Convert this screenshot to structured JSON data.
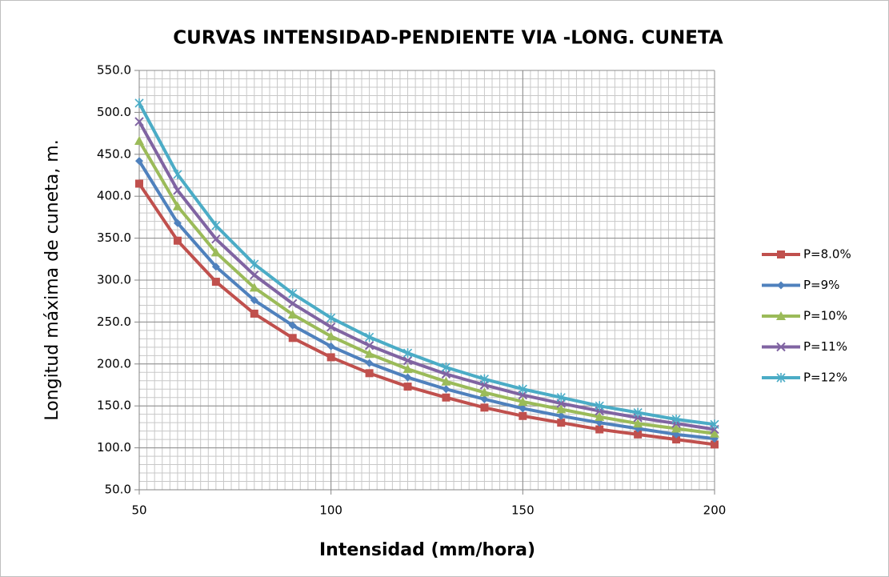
{
  "chart_data": {
    "type": "line",
    "title": "CURVAS  INTENSIDAD-PENDIENTE VIA -LONG. CUNETA",
    "x_label": "Intensidad (mm/hora)",
    "y_label": "Longitud máxima de cuneta, m.",
    "x": [
      50,
      60,
      70,
      80,
      90,
      100,
      110,
      120,
      130,
      140,
      150,
      160,
      170,
      180,
      190,
      200
    ],
    "series": [
      {
        "name": "P=8.0%",
        "color": "#c0504d",
        "marker": "square",
        "values": [
          415,
          347,
          298,
          260,
          231,
          208,
          189,
          173,
          160,
          148,
          138,
          130,
          122,
          116,
          110,
          104
        ]
      },
      {
        "name": "P=9%",
        "color": "#4f81bd",
        "marker": "diamond",
        "values": [
          442,
          368,
          316,
          276,
          246,
          221,
          201,
          184,
          170,
          158,
          147,
          138,
          130,
          123,
          116,
          111
        ]
      },
      {
        "name": "P=10%",
        "color": "#9bbb59",
        "marker": "triangle",
        "values": [
          466,
          388,
          333,
          291,
          259,
          233,
          212,
          194,
          179,
          166,
          155,
          146,
          137,
          129,
          123,
          117
        ]
      },
      {
        "name": "P=11%",
        "color": "#8064a2",
        "marker": "x",
        "values": [
          489,
          407,
          349,
          306,
          272,
          244,
          222,
          204,
          188,
          175,
          163,
          153,
          144,
          136,
          129,
          122
        ]
      },
      {
        "name": "P=12%",
        "color": "#4bacc6",
        "marker": "star",
        "values": [
          511,
          426,
          365,
          319,
          284,
          255,
          232,
          213,
          196,
          182,
          170,
          160,
          150,
          142,
          134,
          128
        ]
      }
    ],
    "xlim": [
      50,
      200
    ],
    "xticks": [
      50,
      100,
      150,
      200
    ],
    "ylim": [
      50,
      550
    ],
    "yticks": [
      {
        "value": 50,
        "label": "50.0"
      },
      {
        "value": 100,
        "label": "100.0"
      },
      {
        "value": 150,
        "label": "150.0"
      },
      {
        "value": 200,
        "label": "200.0"
      },
      {
        "value": 250,
        "label": "250.0"
      },
      {
        "value": 300,
        "label": "300.0"
      },
      {
        "value": 350,
        "label": "350.0"
      },
      {
        "value": 400,
        "label": "400.0"
      },
      {
        "value": 450,
        "label": "450.0"
      },
      {
        "value": 500,
        "label": "500.0"
      },
      {
        "value": 550,
        "label": "550.0"
      }
    ],
    "grid": true,
    "minor_grid": {
      "x": 2,
      "y": 10
    },
    "legend": "right"
  }
}
